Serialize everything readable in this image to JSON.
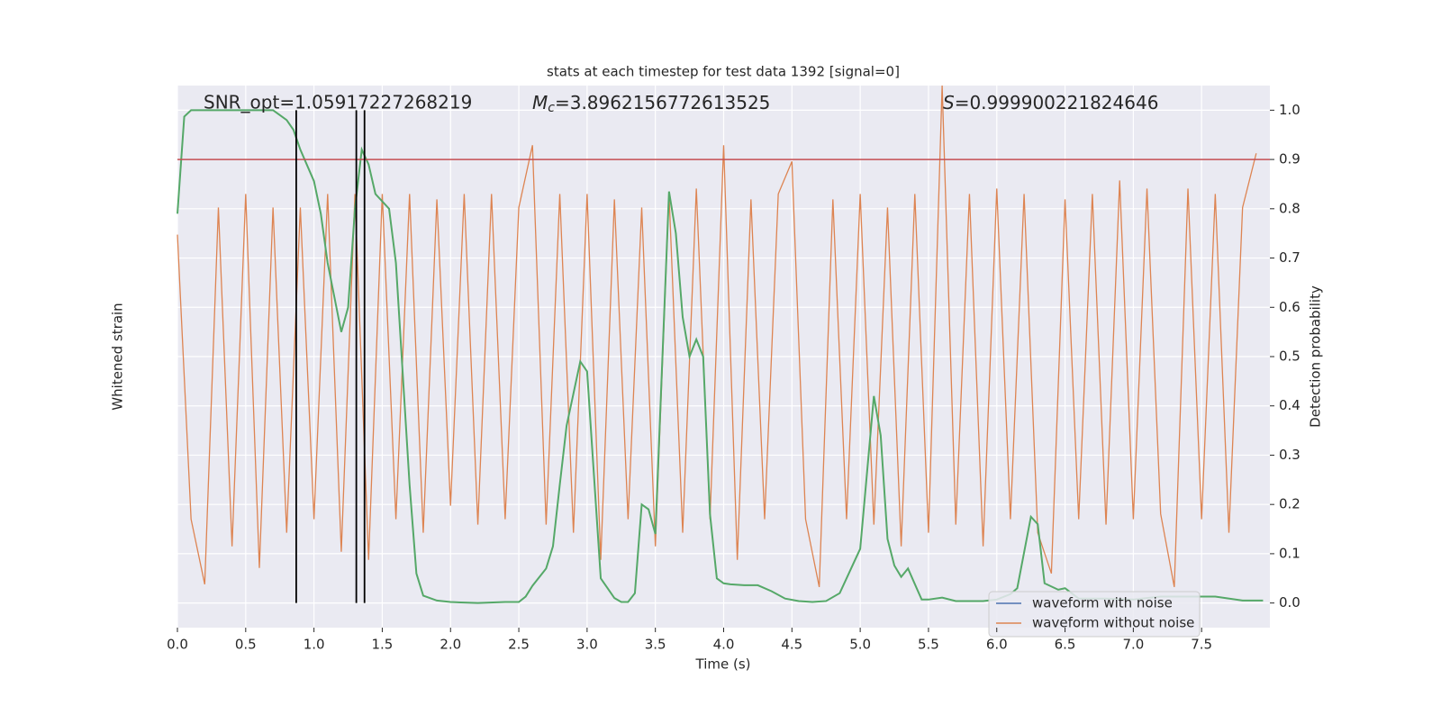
{
  "chart_data": {
    "type": "line",
    "title": "stats at each timestep for test data 1392 [signal=0]",
    "xlabel": "Time (s)",
    "ylabel": "Whitened strain",
    "y2label": "Detection probability",
    "annotations": [
      {
        "text": "SNR_opt=1.05917227268219"
      },
      {
        "symbol": "M",
        "subscript": "c",
        "text": "=3.8962156772613525"
      },
      {
        "symbol": "S",
        "text": "=0.999900221824646"
      }
    ],
    "xlim": [
      0,
      8
    ],
    "xticks": [
      {
        "value": 0,
        "label": "0.0"
      },
      0.5,
      {
        "value": 1,
        "label": "1.0"
      },
      1.5,
      {
        "value": 2,
        "label": "2.0"
      },
      2.5,
      {
        "value": 3,
        "label": "3.0"
      },
      3.5,
      {
        "value": 4,
        "label": "4.0"
      },
      4.5,
      {
        "value": 5,
        "label": "5.0"
      },
      5.5,
      {
        "value": 6,
        "label": "6.0"
      },
      6.5,
      {
        "value": 7,
        "label": "7.0"
      },
      7.5
    ],
    "ylim": [
      -1,
      1
    ],
    "y2lim": [
      -0.05,
      1.05
    ],
    "y2ticks": [
      {
        "value": 0,
        "label": "0.0"
      },
      0.1,
      0.2,
      0.3,
      0.4,
      0.5,
      0.6,
      0.7,
      0.8,
      0.9,
      {
        "value": 1,
        "label": "1.0"
      }
    ],
    "grid": true,
    "legend": "lower right",
    "series": [
      {
        "name": "waveform with noise",
        "color": "#4c72b0"
      },
      {
        "name": "waveform without noise",
        "color": "#dd8452",
        "x": [
          0,
          0.1,
          0.2,
          0.3,
          0.4,
          0.5,
          0.6,
          0.7,
          0.8,
          0.9,
          1,
          1.1,
          1.2,
          1.3,
          1.4,
          1.5,
          1.6,
          1.7,
          1.8,
          1.9,
          2,
          2.1,
          2.2,
          2.3,
          2.4,
          2.5,
          2.6,
          2.7,
          2.8,
          2.9,
          3,
          3.1,
          3.2,
          3.3,
          3.4,
          3.5,
          3.6,
          3.7,
          3.8,
          3.9,
          4,
          4.1,
          4.2,
          4.3,
          4.4,
          4.5,
          4.6,
          4.7,
          4.8,
          4.9,
          5,
          5.1,
          5.2,
          5.3,
          5.4,
          5.5,
          5.6,
          5.7,
          5.8,
          5.9,
          6,
          6.1,
          6.2,
          6.3,
          6.4,
          6.5,
          6.6,
          6.7,
          6.8,
          6.9,
          7,
          7.1,
          7.2,
          7.3,
          7.4,
          7.5,
          7.6,
          7.7,
          7.8,
          7.9
        ],
        "values": [
          0.45,
          -0.6,
          -0.84,
          0.55,
          -0.7,
          0.6,
          -0.78,
          0.55,
          -0.65,
          0.55,
          -0.6,
          0.6,
          -0.72,
          0.6,
          -0.75,
          0.6,
          -0.6,
          0.6,
          -0.65,
          0.58,
          -0.55,
          0.6,
          -0.62,
          0.6,
          -0.6,
          0.55,
          0.78,
          -0.62,
          0.6,
          -0.65,
          0.6,
          -0.75,
          0.58,
          -0.6,
          0.55,
          -0.7,
          0.6,
          -0.65,
          0.62,
          -0.6,
          0.78,
          -0.75,
          0.58,
          -0.6,
          0.6,
          0.72,
          -0.6,
          -0.85,
          0.58,
          -0.6,
          0.6,
          -0.62,
          0.55,
          -0.7,
          0.6,
          -0.65,
          1.0,
          -0.62,
          0.6,
          -0.7,
          0.62,
          -0.6,
          0.6,
          -0.65,
          -0.8,
          0.58,
          -0.6,
          0.6,
          -0.62,
          0.65,
          -0.6,
          0.62,
          -0.58,
          -0.85,
          0.62,
          -0.6,
          0.6,
          -0.65,
          0.55,
          0.75
        ]
      },
      {
        "color": "#55a868",
        "axis": "y2",
        "x": [
          0,
          0.05,
          0.1,
          0.7,
          0.75,
          0.8,
          0.85,
          0.9,
          1,
          1.05,
          1.1,
          1.2,
          1.25,
          1.3,
          1.35,
          1.4,
          1.45,
          1.55,
          1.6,
          1.7,
          1.75,
          1.8,
          1.9,
          2,
          2.2,
          2.4,
          2.5,
          2.55,
          2.6,
          2.7,
          2.75,
          2.8,
          2.85,
          2.95,
          3,
          3.1,
          3.15,
          3.2,
          3.25,
          3.3,
          3.35,
          3.4,
          3.45,
          3.5,
          3.6,
          3.65,
          3.7,
          3.75,
          3.8,
          3.85,
          3.9,
          3.95,
          4,
          4.05,
          4.15,
          4.25,
          4.35,
          4.45,
          4.55,
          4.65,
          4.75,
          4.85,
          4.95,
          5,
          5.1,
          5.15,
          5.2,
          5.25,
          5.3,
          5.35,
          5.45,
          5.5,
          5.6,
          5.7,
          5.8,
          5.9,
          6,
          6.1,
          6.15,
          6.25,
          6.3,
          6.35,
          6.45,
          6.5,
          6.6,
          6.8,
          7,
          7.2,
          7.4,
          7.6,
          7.8,
          7.95
        ],
        "values": [
          0.79,
          0.987,
          1,
          1,
          0.99,
          0.98,
          0.96,
          0.92,
          0.856,
          0.79,
          0.69,
          0.55,
          0.6,
          0.8,
          0.92,
          0.89,
          0.83,
          0.8,
          0.69,
          0.24,
          0.06,
          0.015,
          0.005,
          0.002,
          0,
          0.002,
          0.002,
          0.013,
          0.035,
          0.07,
          0.115,
          0.24,
          0.36,
          0.49,
          0.47,
          0.05,
          0.03,
          0.01,
          0.002,
          0.002,
          0.02,
          0.2,
          0.19,
          0.14,
          0.835,
          0.75,
          0.58,
          0.5,
          0.535,
          0.5,
          0.18,
          0.05,
          0.04,
          0.038,
          0.036,
          0.036,
          0.024,
          0.009,
          0.004,
          0.002,
          0.004,
          0.02,
          0.08,
          0.11,
          0.42,
          0.34,
          0.13,
          0.076,
          0.053,
          0.07,
          0.007,
          0.007,
          0.011,
          0.004,
          0.004,
          0.004,
          0.007,
          0.018,
          0.03,
          0.175,
          0.16,
          0.04,
          0.027,
          0.03,
          0.009,
          0.009,
          0.007,
          0.013,
          0.013,
          0.013,
          0.005,
          0.005
        ]
      }
    ],
    "hline": {
      "y": 0.9,
      "color": "#c44e52",
      "axis": "y2"
    },
    "vlines": {
      "x": [
        0.87,
        1.31,
        1.37
      ],
      "ymin": 0,
      "ymax": 1,
      "color": "#000000",
      "axis": "y2"
    }
  }
}
